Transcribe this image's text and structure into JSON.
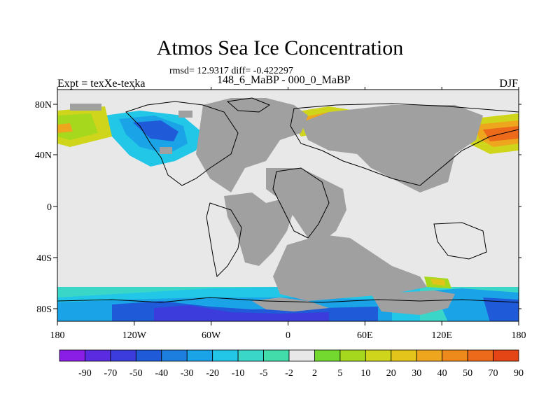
{
  "title": "Atmos Sea Ice Concentration",
  "subtitle": "rmsd= 12.9317 diff= -0.422297",
  "left_string": "Expt = texXe-texka",
  "center_string": "148_6_MaBP - 000_0_MaBP",
  "right_string": "DJF",
  "axes": {
    "x_ticks": [
      "180",
      "120W",
      "60W",
      "0",
      "60E",
      "120E",
      "180"
    ],
    "y_ticks": [
      "80N",
      "40N",
      "0",
      "40S",
      "80S"
    ]
  },
  "colorbar": {
    "labels": [
      "-90",
      "-70",
      "-50",
      "-40",
      "-30",
      "-20",
      "-10",
      "-5",
      "-2",
      "2",
      "5",
      "10",
      "20",
      "30",
      "40",
      "50",
      "70",
      "90"
    ],
    "colors": [
      "#8a1ee6",
      "#5a2be0",
      "#3c3cdc",
      "#1f5bd8",
      "#1e7ee0",
      "#1aa3e6",
      "#22c6e6",
      "#3ad6c8",
      "#41dcaa",
      "#e8e8e8",
      "#74d92e",
      "#a6d81e",
      "#cfd51a",
      "#e3c41a",
      "#eda61e",
      "#ee8a1c",
      "#ec6a1a",
      "#e54414"
    ]
  },
  "colors": {
    "land": "#a0a0a0",
    "ocean_zero": "#e8e8e8",
    "background": "#ffffff"
  }
}
